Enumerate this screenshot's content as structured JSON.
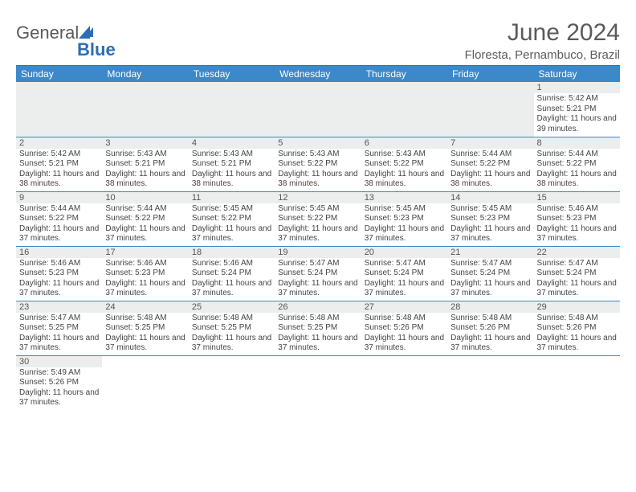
{
  "logo": {
    "part1": "General",
    "part2": "Blue"
  },
  "title": "June 2024",
  "location": "Floresta, Pernambuco, Brazil",
  "colors": {
    "header_bg": "#3b89c9",
    "header_text": "#ffffff",
    "border": "#3b89c9",
    "daynum_bg": "#eceded",
    "text": "#444444",
    "title_text": "#5a5a5a"
  },
  "daysOfWeek": [
    "Sunday",
    "Monday",
    "Tuesday",
    "Wednesday",
    "Thursday",
    "Friday",
    "Saturday"
  ],
  "layout": {
    "columns": 7,
    "first_day_column": 6,
    "total_days": 30
  },
  "days": [
    {
      "n": 1,
      "sunrise": "5:42 AM",
      "sunset": "5:21 PM",
      "daylight": "11 hours and 39 minutes."
    },
    {
      "n": 2,
      "sunrise": "5:42 AM",
      "sunset": "5:21 PM",
      "daylight": "11 hours and 38 minutes."
    },
    {
      "n": 3,
      "sunrise": "5:43 AM",
      "sunset": "5:21 PM",
      "daylight": "11 hours and 38 minutes."
    },
    {
      "n": 4,
      "sunrise": "5:43 AM",
      "sunset": "5:21 PM",
      "daylight": "11 hours and 38 minutes."
    },
    {
      "n": 5,
      "sunrise": "5:43 AM",
      "sunset": "5:22 PM",
      "daylight": "11 hours and 38 minutes."
    },
    {
      "n": 6,
      "sunrise": "5:43 AM",
      "sunset": "5:22 PM",
      "daylight": "11 hours and 38 minutes."
    },
    {
      "n": 7,
      "sunrise": "5:44 AM",
      "sunset": "5:22 PM",
      "daylight": "11 hours and 38 minutes."
    },
    {
      "n": 8,
      "sunrise": "5:44 AM",
      "sunset": "5:22 PM",
      "daylight": "11 hours and 38 minutes."
    },
    {
      "n": 9,
      "sunrise": "5:44 AM",
      "sunset": "5:22 PM",
      "daylight": "11 hours and 37 minutes."
    },
    {
      "n": 10,
      "sunrise": "5:44 AM",
      "sunset": "5:22 PM",
      "daylight": "11 hours and 37 minutes."
    },
    {
      "n": 11,
      "sunrise": "5:45 AM",
      "sunset": "5:22 PM",
      "daylight": "11 hours and 37 minutes."
    },
    {
      "n": 12,
      "sunrise": "5:45 AM",
      "sunset": "5:22 PM",
      "daylight": "11 hours and 37 minutes."
    },
    {
      "n": 13,
      "sunrise": "5:45 AM",
      "sunset": "5:23 PM",
      "daylight": "11 hours and 37 minutes."
    },
    {
      "n": 14,
      "sunrise": "5:45 AM",
      "sunset": "5:23 PM",
      "daylight": "11 hours and 37 minutes."
    },
    {
      "n": 15,
      "sunrise": "5:46 AM",
      "sunset": "5:23 PM",
      "daylight": "11 hours and 37 minutes."
    },
    {
      "n": 16,
      "sunrise": "5:46 AM",
      "sunset": "5:23 PM",
      "daylight": "11 hours and 37 minutes."
    },
    {
      "n": 17,
      "sunrise": "5:46 AM",
      "sunset": "5:23 PM",
      "daylight": "11 hours and 37 minutes."
    },
    {
      "n": 18,
      "sunrise": "5:46 AM",
      "sunset": "5:24 PM",
      "daylight": "11 hours and 37 minutes."
    },
    {
      "n": 19,
      "sunrise": "5:47 AM",
      "sunset": "5:24 PM",
      "daylight": "11 hours and 37 minutes."
    },
    {
      "n": 20,
      "sunrise": "5:47 AM",
      "sunset": "5:24 PM",
      "daylight": "11 hours and 37 minutes."
    },
    {
      "n": 21,
      "sunrise": "5:47 AM",
      "sunset": "5:24 PM",
      "daylight": "11 hours and 37 minutes."
    },
    {
      "n": 22,
      "sunrise": "5:47 AM",
      "sunset": "5:24 PM",
      "daylight": "11 hours and 37 minutes."
    },
    {
      "n": 23,
      "sunrise": "5:47 AM",
      "sunset": "5:25 PM",
      "daylight": "11 hours and 37 minutes."
    },
    {
      "n": 24,
      "sunrise": "5:48 AM",
      "sunset": "5:25 PM",
      "daylight": "11 hours and 37 minutes."
    },
    {
      "n": 25,
      "sunrise": "5:48 AM",
      "sunset": "5:25 PM",
      "daylight": "11 hours and 37 minutes."
    },
    {
      "n": 26,
      "sunrise": "5:48 AM",
      "sunset": "5:25 PM",
      "daylight": "11 hours and 37 minutes."
    },
    {
      "n": 27,
      "sunrise": "5:48 AM",
      "sunset": "5:26 PM",
      "daylight": "11 hours and 37 minutes."
    },
    {
      "n": 28,
      "sunrise": "5:48 AM",
      "sunset": "5:26 PM",
      "daylight": "11 hours and 37 minutes."
    },
    {
      "n": 29,
      "sunrise": "5:48 AM",
      "sunset": "5:26 PM",
      "daylight": "11 hours and 37 minutes."
    },
    {
      "n": 30,
      "sunrise": "5:49 AM",
      "sunset": "5:26 PM",
      "daylight": "11 hours and 37 minutes."
    }
  ],
  "labels": {
    "sunrise": "Sunrise:",
    "sunset": "Sunset:",
    "daylight": "Daylight:"
  }
}
